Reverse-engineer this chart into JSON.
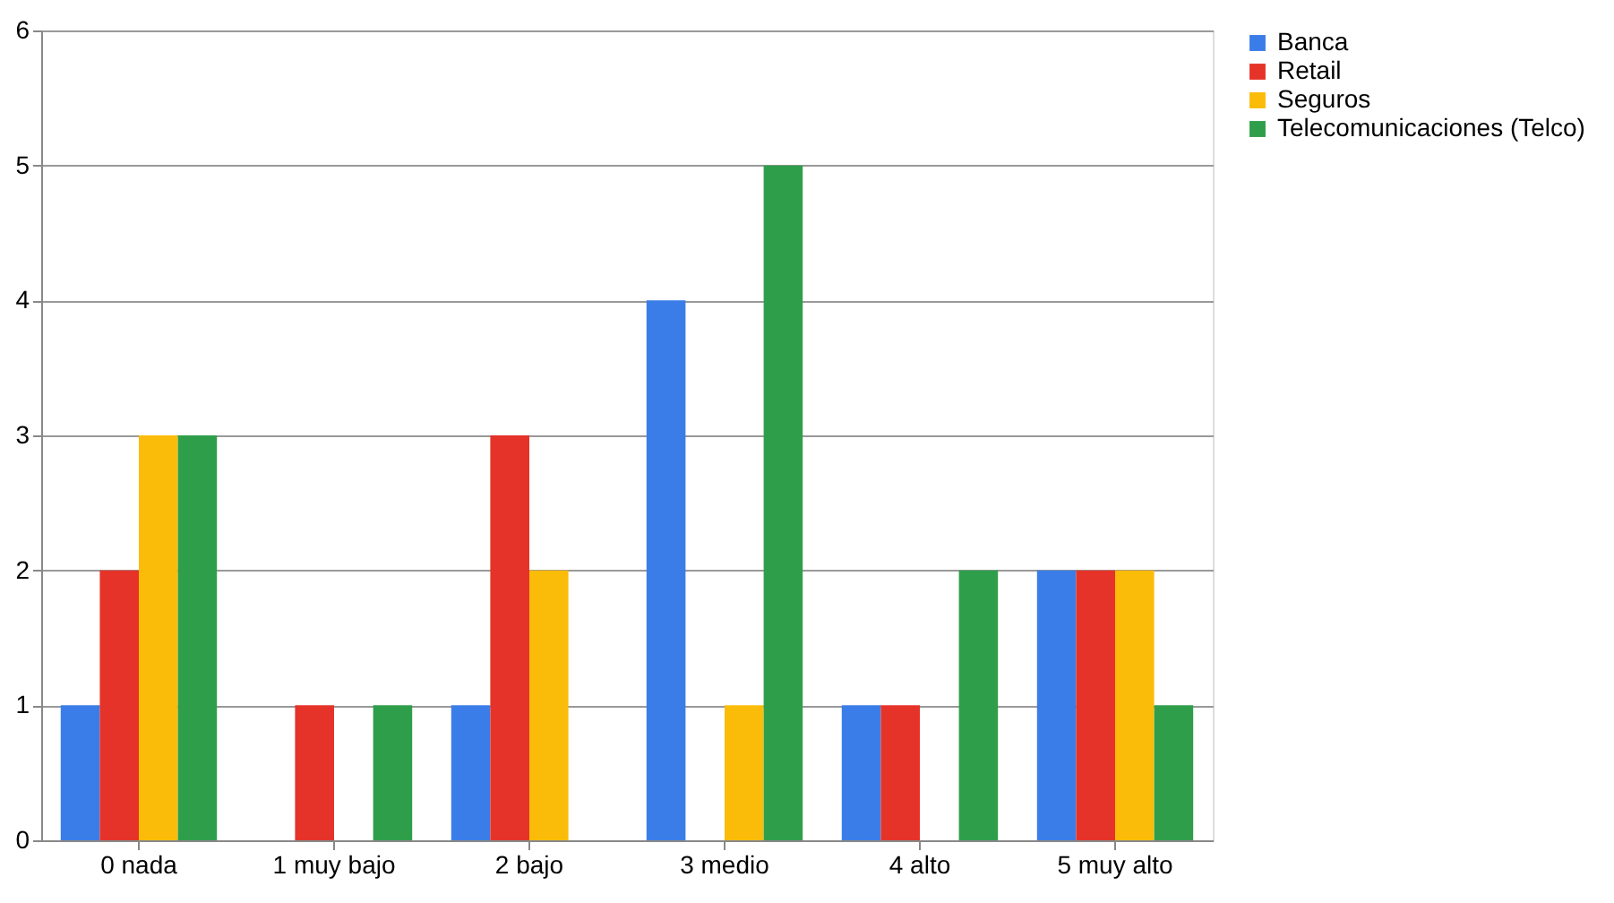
{
  "chart_data": {
    "type": "bar",
    "categories": [
      "0 nada",
      "1 muy bajo",
      "2 bajo",
      "3 medio",
      "4 alto",
      "5 muy alto"
    ],
    "series": [
      {
        "name": "Banca",
        "color": "#3b7de8",
        "values": [
          1,
          0,
          1,
          4,
          1,
          2
        ]
      },
      {
        "name": "Retail",
        "color": "#e5332a",
        "values": [
          2,
          1,
          3,
          0,
          1,
          2
        ]
      },
      {
        "name": "Seguros",
        "color": "#fbbc09",
        "values": [
          3,
          0,
          2,
          1,
          0,
          2
        ]
      },
      {
        "name": "Telecomunicaciones (Telco)",
        "color": "#2f9e4a",
        "values": [
          3,
          1,
          0,
          5,
          2,
          1
        ]
      }
    ],
    "ylim": [
      0,
      6
    ],
    "yticks": [
      0,
      1,
      2,
      3,
      4,
      5,
      6
    ],
    "grid": "y",
    "legend": "right"
  }
}
